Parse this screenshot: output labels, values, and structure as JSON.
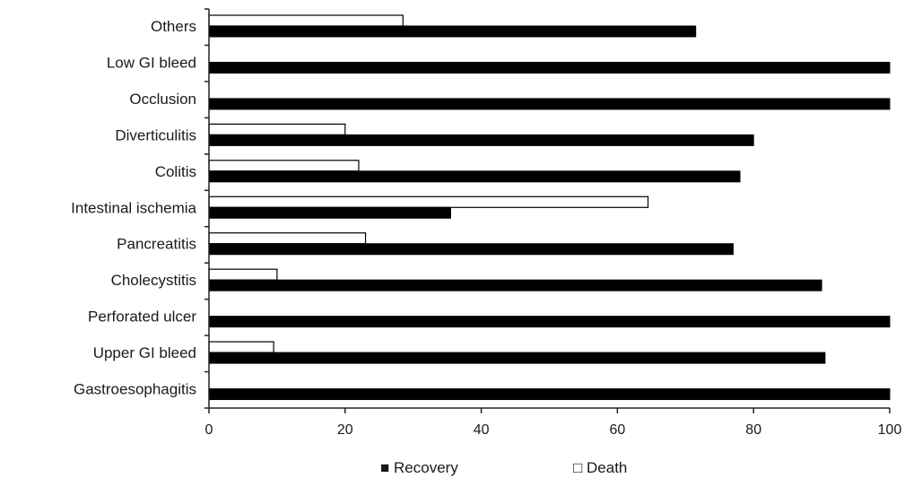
{
  "chart_data": {
    "type": "bar",
    "orientation": "horizontal",
    "categories": [
      "Others",
      "Low GI bleed",
      "Occlusion",
      "Diverticulitis",
      "Colitis",
      "Intestinal ischemia",
      "Pancreatitis",
      "Cholecystitis",
      "Perforated ulcer",
      "Upper GI bleed",
      "Gastroesophagitis"
    ],
    "series": [
      {
        "name": "Death",
        "color": "#ffffff",
        "values": [
          28.5,
          0,
          0,
          20,
          22,
          64.5,
          23,
          10,
          0,
          9.5,
          0
        ]
      },
      {
        "name": "Recovery",
        "color": "#000000",
        "values": [
          71.5,
          100,
          100,
          80,
          78,
          35.5,
          77,
          90,
          100,
          90.5,
          100
        ]
      }
    ],
    "xlim": [
      0,
      100
    ],
    "xticks": [
      "0",
      "20",
      "40",
      "60",
      "80",
      "100"
    ],
    "grid": false,
    "legend": {
      "position": "bottom",
      "entries": [
        {
          "symbol": "■",
          "label": "Recovery"
        },
        {
          "symbol": "□",
          "label": "Death"
        }
      ]
    }
  }
}
